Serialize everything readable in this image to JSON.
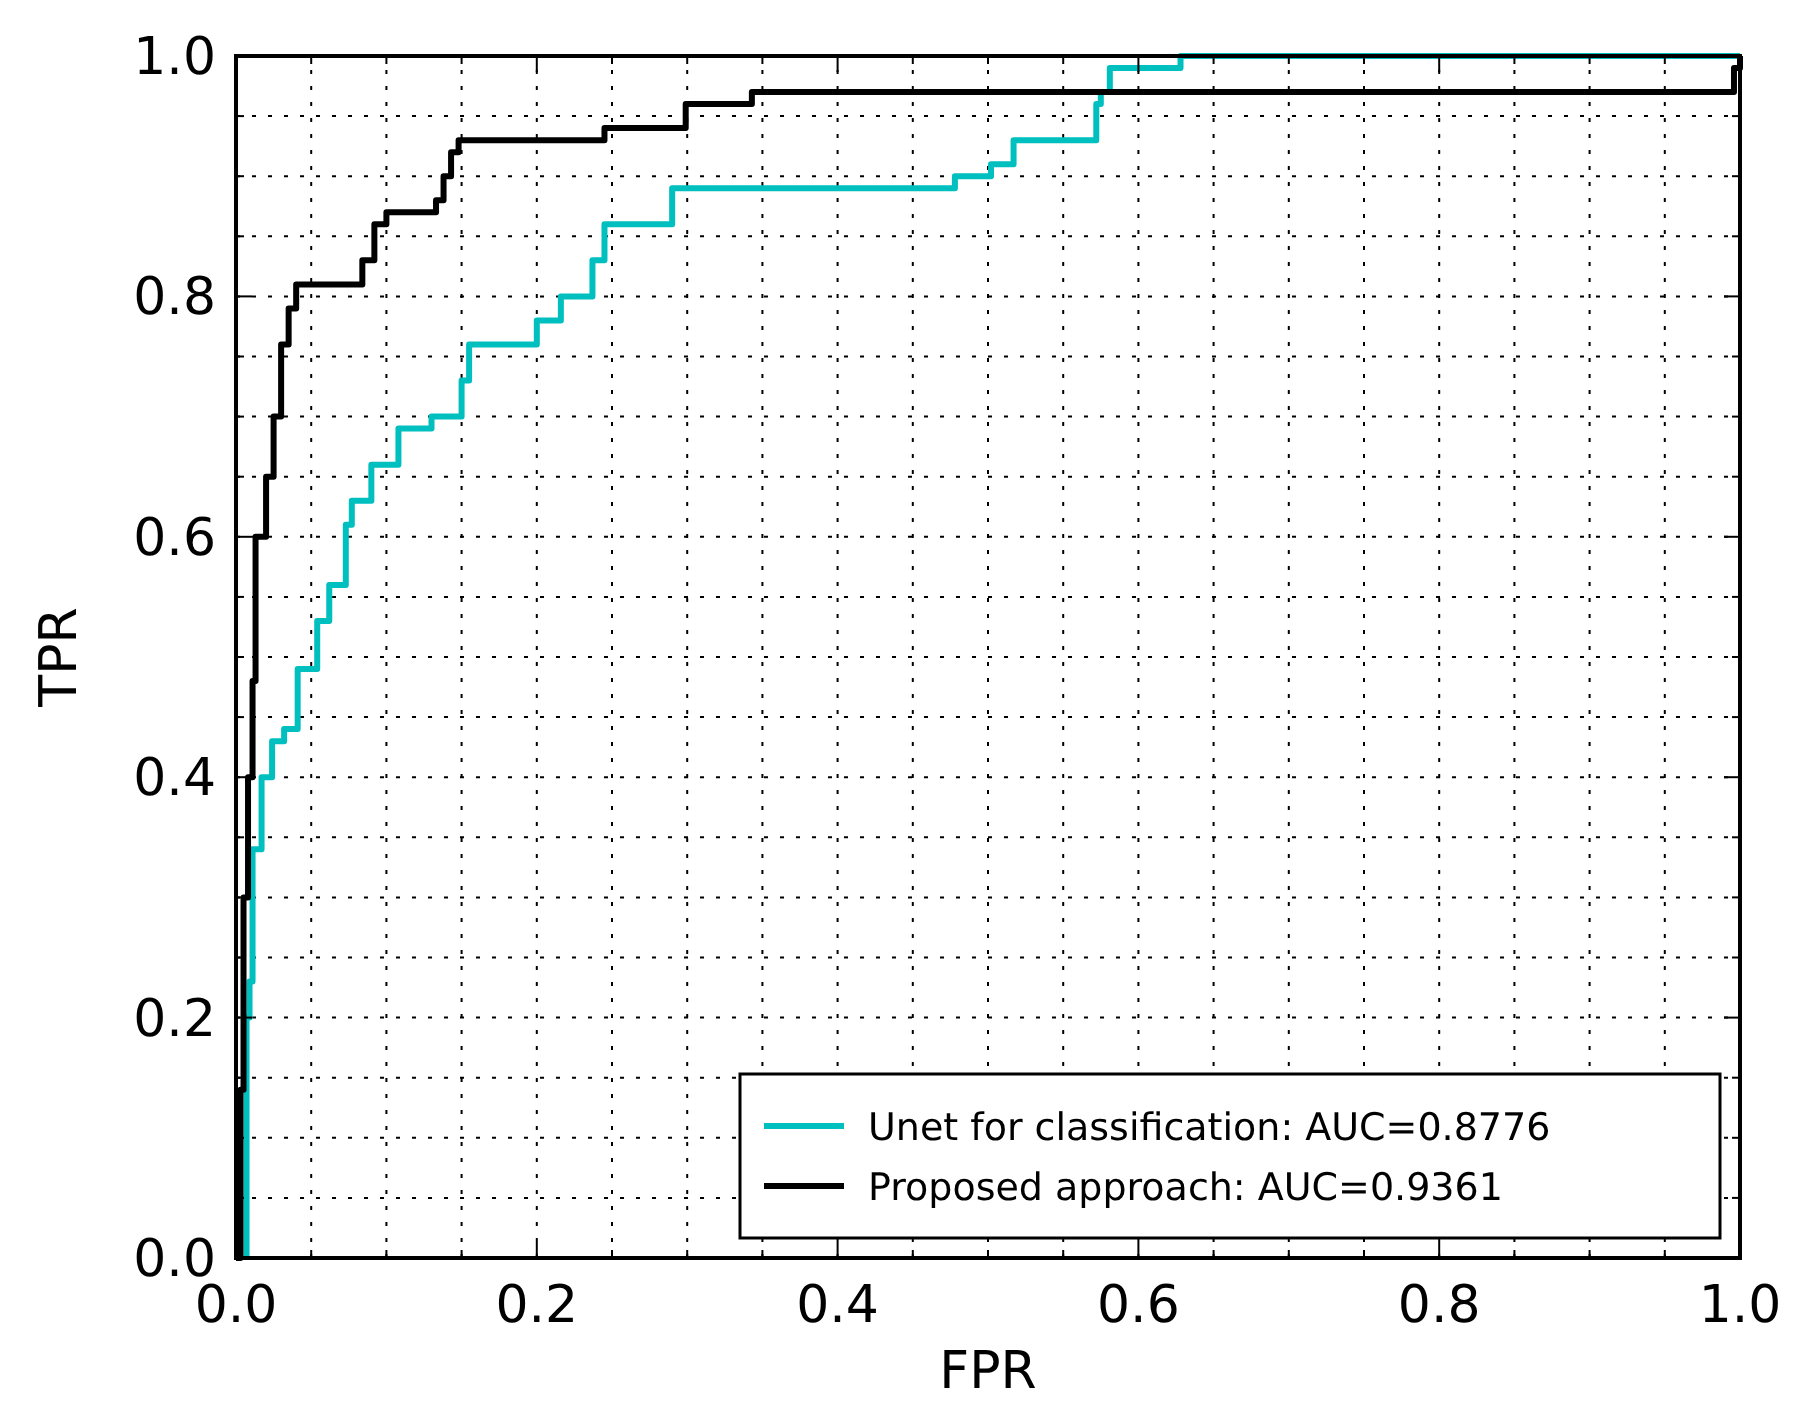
{
  "chart_data": {
    "type": "line",
    "xlabel": "FPR",
    "ylabel": "TPR",
    "xlim": [
      0,
      1
    ],
    "ylim": [
      0,
      1
    ],
    "xticks": [
      {
        "value": 0,
        "label": "0.0"
      },
      {
        "value": 0.05,
        "label": null
      },
      {
        "value": 0.1,
        "label": null
      },
      {
        "value": 0.15,
        "label": null
      },
      {
        "value": 0.2,
        "label": "0.2"
      },
      {
        "value": 0.25,
        "label": null
      },
      {
        "value": 0.3,
        "label": null
      },
      {
        "value": 0.35,
        "label": null
      },
      {
        "value": 0.4,
        "label": "0.4"
      },
      {
        "value": 0.45,
        "label": null
      },
      {
        "value": 0.5,
        "label": null
      },
      {
        "value": 0.55,
        "label": null
      },
      {
        "value": 0.6,
        "label": "0.6"
      },
      {
        "value": 0.65,
        "label": null
      },
      {
        "value": 0.7,
        "label": null
      },
      {
        "value": 0.75,
        "label": null
      },
      {
        "value": 0.8,
        "label": "0.8"
      },
      {
        "value": 0.85,
        "label": null
      },
      {
        "value": 0.9,
        "label": null
      },
      {
        "value": 0.95,
        "label": null
      },
      {
        "value": 1,
        "label": "1.0"
      }
    ],
    "yticks": [
      {
        "value": 0,
        "label": "0.0"
      },
      {
        "value": 0.05,
        "label": null
      },
      {
        "value": 0.1,
        "label": null
      },
      {
        "value": 0.15,
        "label": null
      },
      {
        "value": 0.2,
        "label": "0.2"
      },
      {
        "value": 0.25,
        "label": null
      },
      {
        "value": 0.3,
        "label": null
      },
      {
        "value": 0.35,
        "label": null
      },
      {
        "value": 0.4,
        "label": "0.4"
      },
      {
        "value": 0.45,
        "label": null
      },
      {
        "value": 0.5,
        "label": null
      },
      {
        "value": 0.55,
        "label": null
      },
      {
        "value": 0.6,
        "label": "0.6"
      },
      {
        "value": 0.65,
        "label": null
      },
      {
        "value": 0.7,
        "label": null
      },
      {
        "value": 0.75,
        "label": null
      },
      {
        "value": 0.8,
        "label": "0.8"
      },
      {
        "value": 0.85,
        "label": null
      },
      {
        "value": 0.9,
        "label": null
      },
      {
        "value": 0.95,
        "label": null
      },
      {
        "value": 1,
        "label": "1.0"
      }
    ],
    "grid": true,
    "legend": "bottom right",
    "marker": "none",
    "line_style": "solid",
    "series": [
      {
        "name": "Unet for classification: AUC=0.8776",
        "color": "#00bfbf",
        "x": [
          0.007,
          0.007,
          0.009,
          0.009,
          0.011,
          0.011,
          0.017,
          0.017,
          0.024,
          0.024,
          0.032,
          0.032,
          0.041,
          0.041,
          0.054,
          0.054,
          0.062,
          0.062,
          0.073,
          0.073,
          0.077,
          0.077,
          0.09,
          0.09,
          0.108,
          0.108,
          0.13,
          0.13,
          0.15,
          0.15,
          0.155,
          0.155,
          0.2,
          0.2,
          0.216,
          0.216,
          0.237,
          0.237,
          0.245,
          0.245,
          0.29,
          0.29,
          0.478,
          0.478,
          0.502,
          0.502,
          0.517,
          0.517,
          0.572,
          0.572,
          0.575,
          0.575,
          0.581,
          0.581,
          0.628,
          0.628,
          1
        ],
        "values": [
          0,
          0.2,
          0.2,
          0.23,
          0.23,
          0.34,
          0.34,
          0.4,
          0.4,
          0.43,
          0.43,
          0.44,
          0.44,
          0.49,
          0.49,
          0.53,
          0.53,
          0.56,
          0.56,
          0.61,
          0.61,
          0.63,
          0.63,
          0.66,
          0.66,
          0.69,
          0.69,
          0.7,
          0.7,
          0.73,
          0.73,
          0.76,
          0.76,
          0.78,
          0.78,
          0.8,
          0.8,
          0.83,
          0.83,
          0.86,
          0.86,
          0.89,
          0.89,
          0.9,
          0.9,
          0.91,
          0.91,
          0.93,
          0.93,
          0.96,
          0.96,
          0.97,
          0.97,
          0.99,
          0.99,
          1,
          1
        ]
      },
      {
        "name": "Proposed approach: AUC=0.9361",
        "color": "#000000",
        "x": [
          0,
          0.003,
          0.003,
          0.005,
          0.005,
          0.008,
          0.008,
          0.011,
          0.011,
          0.013,
          0.013,
          0.02,
          0.02,
          0.025,
          0.025,
          0.03,
          0.03,
          0.035,
          0.035,
          0.04,
          0.04,
          0.045,
          0.045,
          0.084,
          0.084,
          0.092,
          0.092,
          0.1,
          0.1,
          0.133,
          0.133,
          0.138,
          0.138,
          0.143,
          0.143,
          0.148,
          0.148,
          0.245,
          0.245,
          0.299,
          0.299,
          0.343,
          0.343,
          0.996,
          0.996,
          1,
          1
        ],
        "values": [
          0,
          0,
          0.14,
          0.14,
          0.3,
          0.3,
          0.4,
          0.4,
          0.48,
          0.48,
          0.6,
          0.6,
          0.65,
          0.65,
          0.7,
          0.7,
          0.76,
          0.76,
          0.79,
          0.79,
          0.81,
          0.81,
          0.81,
          0.81,
          0.83,
          0.83,
          0.86,
          0.86,
          0.87,
          0.87,
          0.88,
          0.88,
          0.9,
          0.9,
          0.92,
          0.92,
          0.93,
          0.93,
          0.94,
          0.94,
          0.96,
          0.96,
          0.97,
          0.97,
          0.99,
          0.99,
          1
        ]
      }
    ]
  }
}
